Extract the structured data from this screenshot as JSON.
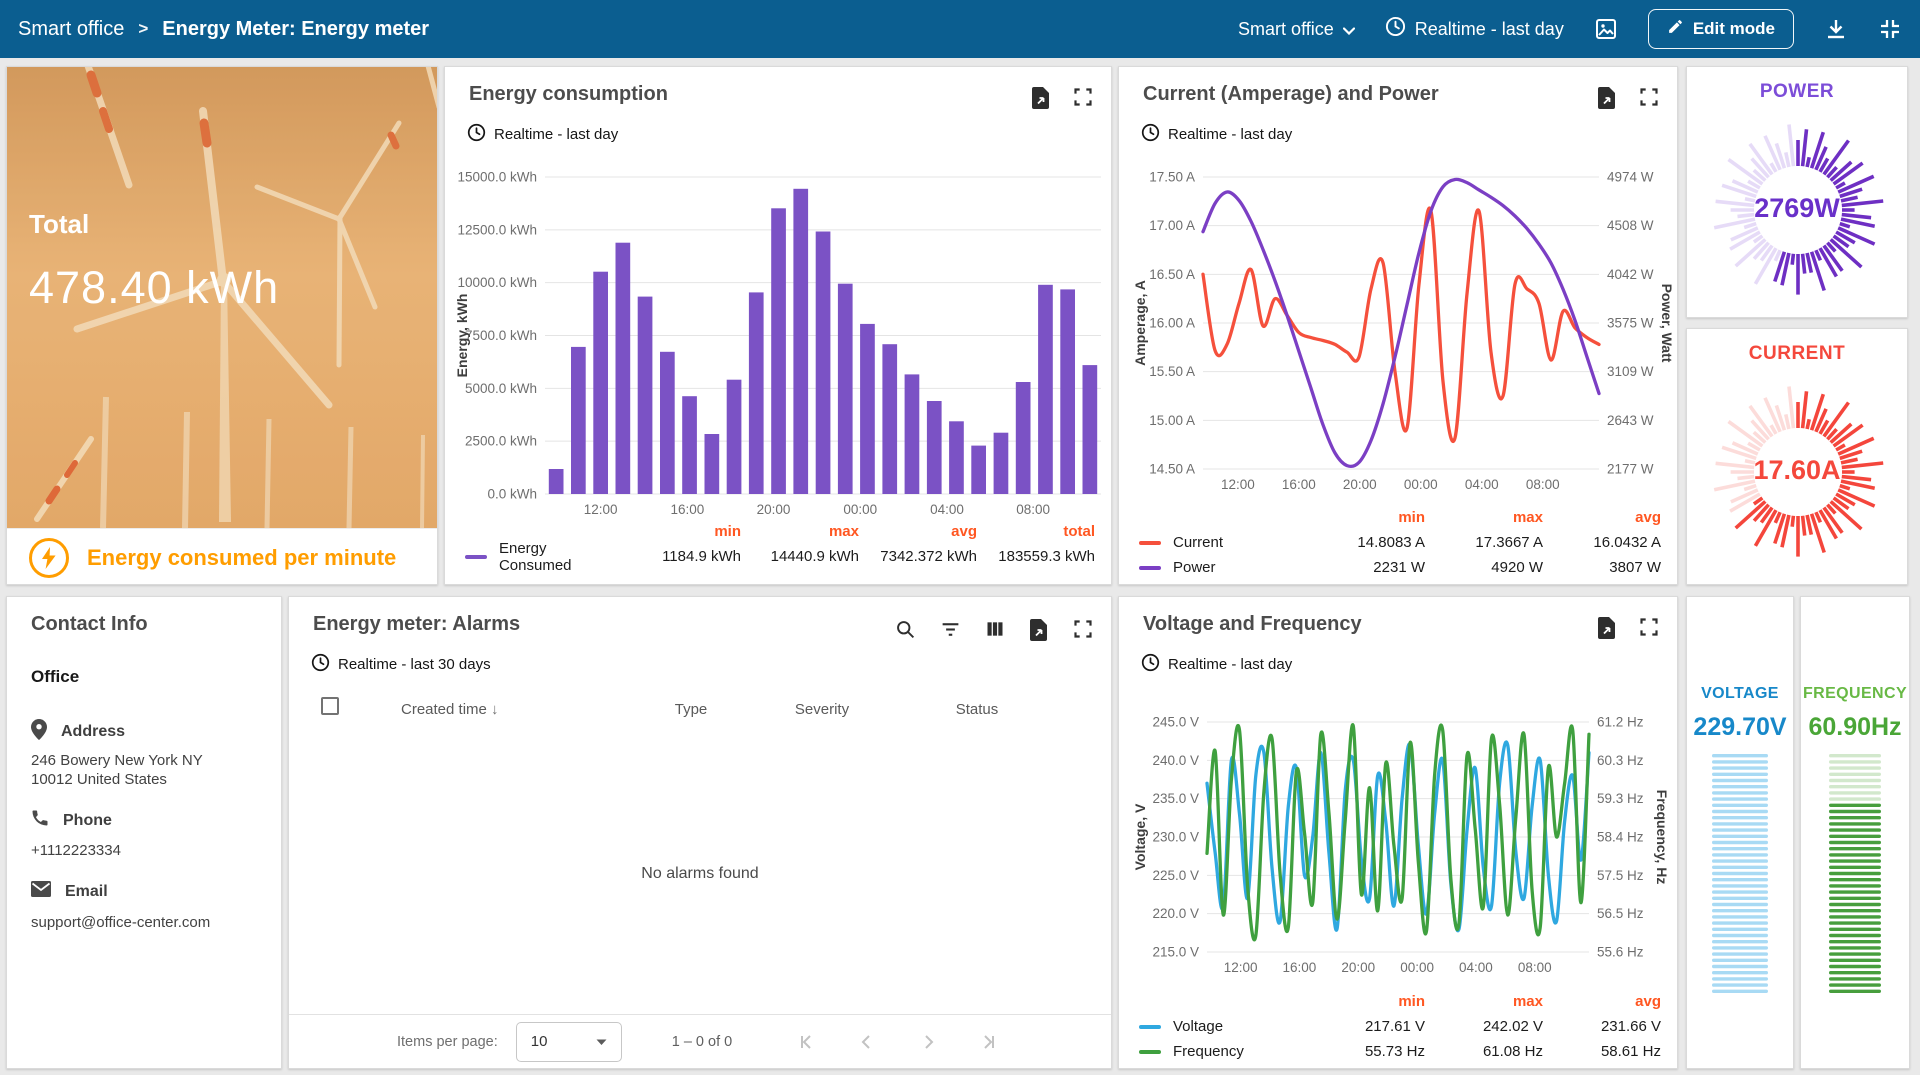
{
  "header": {
    "breadcrumb_root": "Smart office",
    "breadcrumb_separator": ">",
    "breadcrumb_current": "Energy Meter: Energy meter",
    "entity_select": "Smart office",
    "timewindow": "Realtime - last day",
    "edit_button": "Edit mode"
  },
  "colors": {
    "header_bg": "#0b5e90",
    "accent_orange": "#ff9d00",
    "stat_label_orange": "#ff5722",
    "bar_purple": "#7b52c5",
    "line_red": "#f5503c",
    "line_purple": "#7b3fc4",
    "line_blue": "#2fa8e0",
    "line_green": "#3fa03f",
    "gauge_power": "#6930c9",
    "gauge_current": "#f4483c",
    "gauge_voltage": "#1788c9",
    "gauge_frequency": "#4aa637"
  },
  "total_card": {
    "label": "Total",
    "value": "478.40 kWh",
    "footer": "Energy consumed per minute"
  },
  "contact": {
    "title": "Contact Info",
    "office_label": "Office",
    "address_label": "Address",
    "address_line1": "246 Bowery New York NY",
    "address_line2": "10012 United States",
    "phone_label": "Phone",
    "phone_value": "+1112223334",
    "email_label": "Email",
    "email_value": "support@office-center.com"
  },
  "alarms": {
    "title": "Energy meter: Alarms",
    "timewindow": "Realtime - last 30 days",
    "col_created": "Created time",
    "col_type": "Type",
    "col_severity": "Severity",
    "col_status": "Status",
    "empty_text": "No alarms found",
    "items_per_page_label": "Items per page:",
    "page_size": "10",
    "range_text": "1 – 0 of 0"
  },
  "gauges": {
    "power": {
      "title": "POWER",
      "value": "2769W",
      "frac": 0.56,
      "color_dark": "#6e2fc3",
      "color_light": "#e6dbf7"
    },
    "current": {
      "title": "CURRENT",
      "value": "17.60A",
      "frac": 0.66,
      "color_dark": "#f4463c",
      "color_light": "#fcdcda"
    },
    "voltage": {
      "title": "VOLTAGE",
      "value": "229.70V",
      "segments": 39,
      "light_top": 39,
      "color_dark": "#a8daf4",
      "color_light": "#a8daf4"
    },
    "frequency": {
      "title": "FREQUENCY",
      "value": "60.90Hz",
      "segments": 39,
      "light_top": 8,
      "color_dark": "#479e3d",
      "color_light": "#d2e8cc"
    }
  },
  "chart_data": [
    {
      "id": "energy-consumption",
      "type": "bar",
      "title": "Energy consumption",
      "timewindow": "Realtime - last day",
      "ylabel": "Energy, kWh",
      "yticks": [
        "15000.0 kWh",
        "12500.0 kWh",
        "10000.0 kWh",
        "7500.0 kWh",
        "5000.0 kWh",
        "2500.0 kWh",
        "0.0 kWh"
      ],
      "ylim": [
        0,
        15000
      ],
      "xticks": [
        "12:00",
        "16:00",
        "20:00",
        "00:00",
        "04:00",
        "08:00"
      ],
      "grid": true,
      "legend_position": "bottom",
      "series": [
        {
          "name": "Energy Consumed",
          "color": "#7b52c5",
          "values": [
            1185,
            6960,
            10520,
            11890,
            9340,
            6730,
            4630,
            2840,
            5410,
            9540,
            13520,
            14440,
            12420,
            9950,
            8050,
            7090,
            5660,
            4400,
            3440,
            2290,
            2900,
            5300,
            9900,
            9680,
            6100
          ]
        }
      ],
      "stats_columns": [
        "min",
        "max",
        "avg",
        "total"
      ],
      "stats_rows": [
        {
          "name": "Energy Consumed",
          "color": "#7b52c5",
          "values": [
            "1184.9 kWh",
            "14440.9 kWh",
            "7342.372 kWh",
            "183559.3 kWh"
          ]
        }
      ]
    },
    {
      "id": "current-power",
      "type": "line",
      "title": "Current (Amperage) and Power",
      "timewindow": "Realtime - last day",
      "ylabel_left": "Amperage, A",
      "ylabel_right": "Power, Watt",
      "yticks_left": [
        "17.50 A",
        "17.00 A",
        "16.50 A",
        "16.00 A",
        "15.50 A",
        "15.00 A",
        "14.50 A"
      ],
      "yticks_right": [
        "4974 W",
        "4508 W",
        "4042 W",
        "3575 W",
        "3109 W",
        "2643 W",
        "2177 W"
      ],
      "ylim_left": [
        14.5,
        17.5
      ],
      "ylim_right": [
        2177,
        4974
      ],
      "xticks": [
        "12:00",
        "16:00",
        "20:00",
        "00:00",
        "04:00",
        "08:00"
      ],
      "grid": true,
      "legend_position": "bottom",
      "series": [
        {
          "name": "Current",
          "color": "#f5503c",
          "axis": "left",
          "values": [
            16.5,
            15.72,
            15.78,
            16.2,
            16.55,
            15.97,
            16.25,
            16.08,
            15.9,
            15.85,
            15.82,
            15.78,
            15.7,
            15.65,
            16.35,
            16.62,
            15.5,
            14.92,
            16.4,
            17.15,
            15.4,
            14.82,
            16.3,
            17.15,
            15.7,
            15.25,
            16.4,
            16.35,
            16.2,
            15.62,
            16.12,
            15.95,
            15.85,
            15.78
          ]
        },
        {
          "name": "Power",
          "color": "#7b3fc4",
          "axis": "right",
          "values": [
            4450,
            4720,
            4830,
            4750,
            4550,
            4280,
            3980,
            3650,
            3300,
            2950,
            2600,
            2330,
            2210,
            2240,
            2450,
            2800,
            3250,
            3750,
            4250,
            4650,
            4880,
            4950,
            4920,
            4850,
            4780,
            4700,
            4600,
            4480,
            4330,
            4150,
            3900,
            3600,
            3250,
            2900
          ]
        }
      ],
      "stats_columns": [
        "min",
        "max",
        "avg"
      ],
      "stats_rows": [
        {
          "name": "Current",
          "color": "#f5503c",
          "values": [
            "14.8083 A",
            "17.3667 A",
            "16.0432 A"
          ]
        },
        {
          "name": "Power",
          "color": "#7b3fc4",
          "values": [
            "2231 W",
            "4920 W",
            "3807 W"
          ]
        }
      ]
    },
    {
      "id": "voltage-frequency",
      "type": "line",
      "title": "Voltage and Frequency",
      "timewindow": "Realtime - last day",
      "ylabel_left": "Voltage, V",
      "ylabel_right": "Frequency, Hz",
      "yticks_left": [
        "245.0 V",
        "240.0 V",
        "235.0 V",
        "230.0 V",
        "225.0 V",
        "220.0 V",
        "215.0 V"
      ],
      "yticks_right": [
        "61.2 Hz",
        "60.3 Hz",
        "59.3 Hz",
        "58.4 Hz",
        "57.5 Hz",
        "56.5 Hz",
        "55.6 Hz"
      ],
      "ylim_left": [
        215,
        245
      ],
      "ylim_right": [
        55.6,
        61.2
      ],
      "xticks": [
        "12:00",
        "16:00",
        "20:00",
        "00:00",
        "04:00",
        "08:00"
      ],
      "grid": true,
      "legend_position": "bottom",
      "series": [
        {
          "name": "Voltage",
          "color": "#2fa8e0",
          "axis": "left",
          "values": [
            237,
            228,
            221,
            240,
            233,
            222,
            238,
            241,
            226,
            219,
            234,
            239,
            225,
            230,
            241,
            228,
            218,
            236,
            240,
            227,
            222,
            238,
            232,
            221,
            235,
            242,
            229,
            220,
            233,
            240,
            224,
            218,
            231,
            239,
            226,
            221,
            237,
            242,
            228,
            222,
            234,
            240,
            225,
            219,
            232,
            238,
            227,
            241
          ]
        },
        {
          "name": "Frequency",
          "color": "#3fa03f",
          "axis": "right",
          "values": [
            58.0,
            60.5,
            56.5,
            59.8,
            61.0,
            57.2,
            56.0,
            59.5,
            60.8,
            57.5,
            56.2,
            60.0,
            58.5,
            56.8,
            60.9,
            59.0,
            56.4,
            58.8,
            61.1,
            57.0,
            59.6,
            56.6,
            60.2,
            58.2,
            56.9,
            60.7,
            57.8,
            56.1,
            59.9,
            61.0,
            57.4,
            56.3,
            60.4,
            58.6,
            56.7,
            60.8,
            59.2,
            56.5,
            58.9,
            60.9,
            57.1,
            56.2,
            60.1,
            58.4,
            59.7,
            61.0,
            56.8,
            60.9
          ]
        }
      ],
      "stats_columns": [
        "min",
        "max",
        "avg"
      ],
      "stats_rows": [
        {
          "name": "Voltage",
          "color": "#2fa8e0",
          "values": [
            "217.61 V",
            "242.02 V",
            "231.66 V"
          ]
        },
        {
          "name": "Frequency",
          "color": "#3fa03f",
          "values": [
            "55.73 Hz",
            "61.08 Hz",
            "58.61 Hz"
          ]
        }
      ]
    }
  ]
}
